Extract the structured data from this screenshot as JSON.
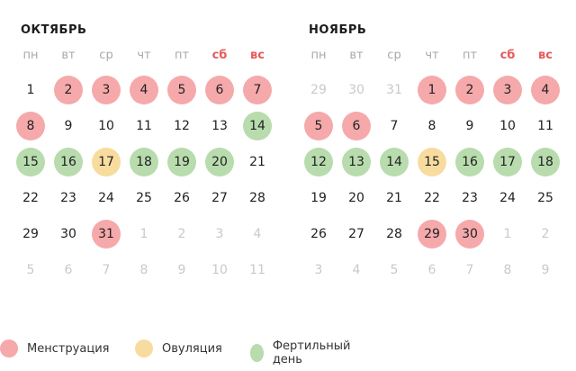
{
  "colors": {
    "menstruation": "#f5a9ab",
    "ovulation": "#f8dc9f",
    "fertile": "#b8dcad",
    "weekend": "#e85a5a",
    "muted": "#c9c9c9"
  },
  "months": [
    {
      "title": "ОКТЯБРЬ",
      "weekdays": [
        "пн",
        "вт",
        "ср",
        "чт",
        "пт",
        "сб",
        "вс"
      ],
      "weeks": [
        [
          {
            "d": "1"
          },
          {
            "d": "2",
            "t": "menstruation"
          },
          {
            "d": "3",
            "t": "menstruation"
          },
          {
            "d": "4",
            "t": "menstruation"
          },
          {
            "d": "5",
            "t": "menstruation"
          },
          {
            "d": "6",
            "t": "menstruation"
          },
          {
            "d": "7",
            "t": "menstruation"
          }
        ],
        [
          {
            "d": "8",
            "t": "menstruation"
          },
          {
            "d": "9"
          },
          {
            "d": "10"
          },
          {
            "d": "11"
          },
          {
            "d": "12"
          },
          {
            "d": "13"
          },
          {
            "d": "14",
            "t": "fertile"
          }
        ],
        [
          {
            "d": "15",
            "t": "fertile"
          },
          {
            "d": "16",
            "t": "fertile"
          },
          {
            "d": "17",
            "t": "ovulation"
          },
          {
            "d": "18",
            "t": "fertile"
          },
          {
            "d": "19",
            "t": "fertile"
          },
          {
            "d": "20",
            "t": "fertile"
          },
          {
            "d": "21"
          }
        ],
        [
          {
            "d": "22"
          },
          {
            "d": "23"
          },
          {
            "d": "24"
          },
          {
            "d": "25"
          },
          {
            "d": "26"
          },
          {
            "d": "27"
          },
          {
            "d": "28"
          }
        ],
        [
          {
            "d": "29"
          },
          {
            "d": "30"
          },
          {
            "d": "31",
            "t": "menstruation"
          },
          {
            "d": "1",
            "o": true
          },
          {
            "d": "2",
            "o": true
          },
          {
            "d": "3",
            "o": true
          },
          {
            "d": "4",
            "o": true
          }
        ],
        [
          {
            "d": "5",
            "o": true
          },
          {
            "d": "6",
            "o": true
          },
          {
            "d": "7",
            "o": true
          },
          {
            "d": "8",
            "o": true
          },
          {
            "d": "9",
            "o": true
          },
          {
            "d": "10",
            "o": true
          },
          {
            "d": "11",
            "o": true
          }
        ]
      ]
    },
    {
      "title": "НОЯБРЬ",
      "weekdays": [
        "пн",
        "вт",
        "ср",
        "чт",
        "пт",
        "сб",
        "вс"
      ],
      "weeks": [
        [
          {
            "d": "29",
            "o": true
          },
          {
            "d": "30",
            "o": true
          },
          {
            "d": "31",
            "o": true
          },
          {
            "d": "1",
            "t": "menstruation"
          },
          {
            "d": "2",
            "t": "menstruation"
          },
          {
            "d": "3",
            "t": "menstruation"
          },
          {
            "d": "4",
            "t": "menstruation"
          }
        ],
        [
          {
            "d": "5",
            "t": "menstruation"
          },
          {
            "d": "6",
            "t": "menstruation"
          },
          {
            "d": "7"
          },
          {
            "d": "8"
          },
          {
            "d": "9"
          },
          {
            "d": "10"
          },
          {
            "d": "11"
          }
        ],
        [
          {
            "d": "12",
            "t": "fertile"
          },
          {
            "d": "13",
            "t": "fertile"
          },
          {
            "d": "14",
            "t": "fertile"
          },
          {
            "d": "15",
            "t": "ovulation"
          },
          {
            "d": "16",
            "t": "fertile"
          },
          {
            "d": "17",
            "t": "fertile"
          },
          {
            "d": "18",
            "t": "fertile"
          }
        ],
        [
          {
            "d": "19"
          },
          {
            "d": "20"
          },
          {
            "d": "21"
          },
          {
            "d": "22"
          },
          {
            "d": "23"
          },
          {
            "d": "24"
          },
          {
            "d": "25"
          }
        ],
        [
          {
            "d": "26"
          },
          {
            "d": "27"
          },
          {
            "d": "28"
          },
          {
            "d": "29",
            "t": "menstruation"
          },
          {
            "d": "30",
            "t": "menstruation"
          },
          {
            "d": "1",
            "o": true
          },
          {
            "d": "2",
            "o": true
          }
        ],
        [
          {
            "d": "3",
            "o": true
          },
          {
            "d": "4",
            "o": true
          },
          {
            "d": "5",
            "o": true
          },
          {
            "d": "6",
            "o": true
          },
          {
            "d": "7",
            "o": true
          },
          {
            "d": "8",
            "o": true
          },
          {
            "d": "9",
            "o": true
          }
        ]
      ]
    }
  ],
  "legend": [
    {
      "key": "menstruation",
      "label": "Менструация"
    },
    {
      "key": "ovulation",
      "label": "Овуляция"
    },
    {
      "key": "fertile",
      "label": "Фертильный день"
    }
  ]
}
